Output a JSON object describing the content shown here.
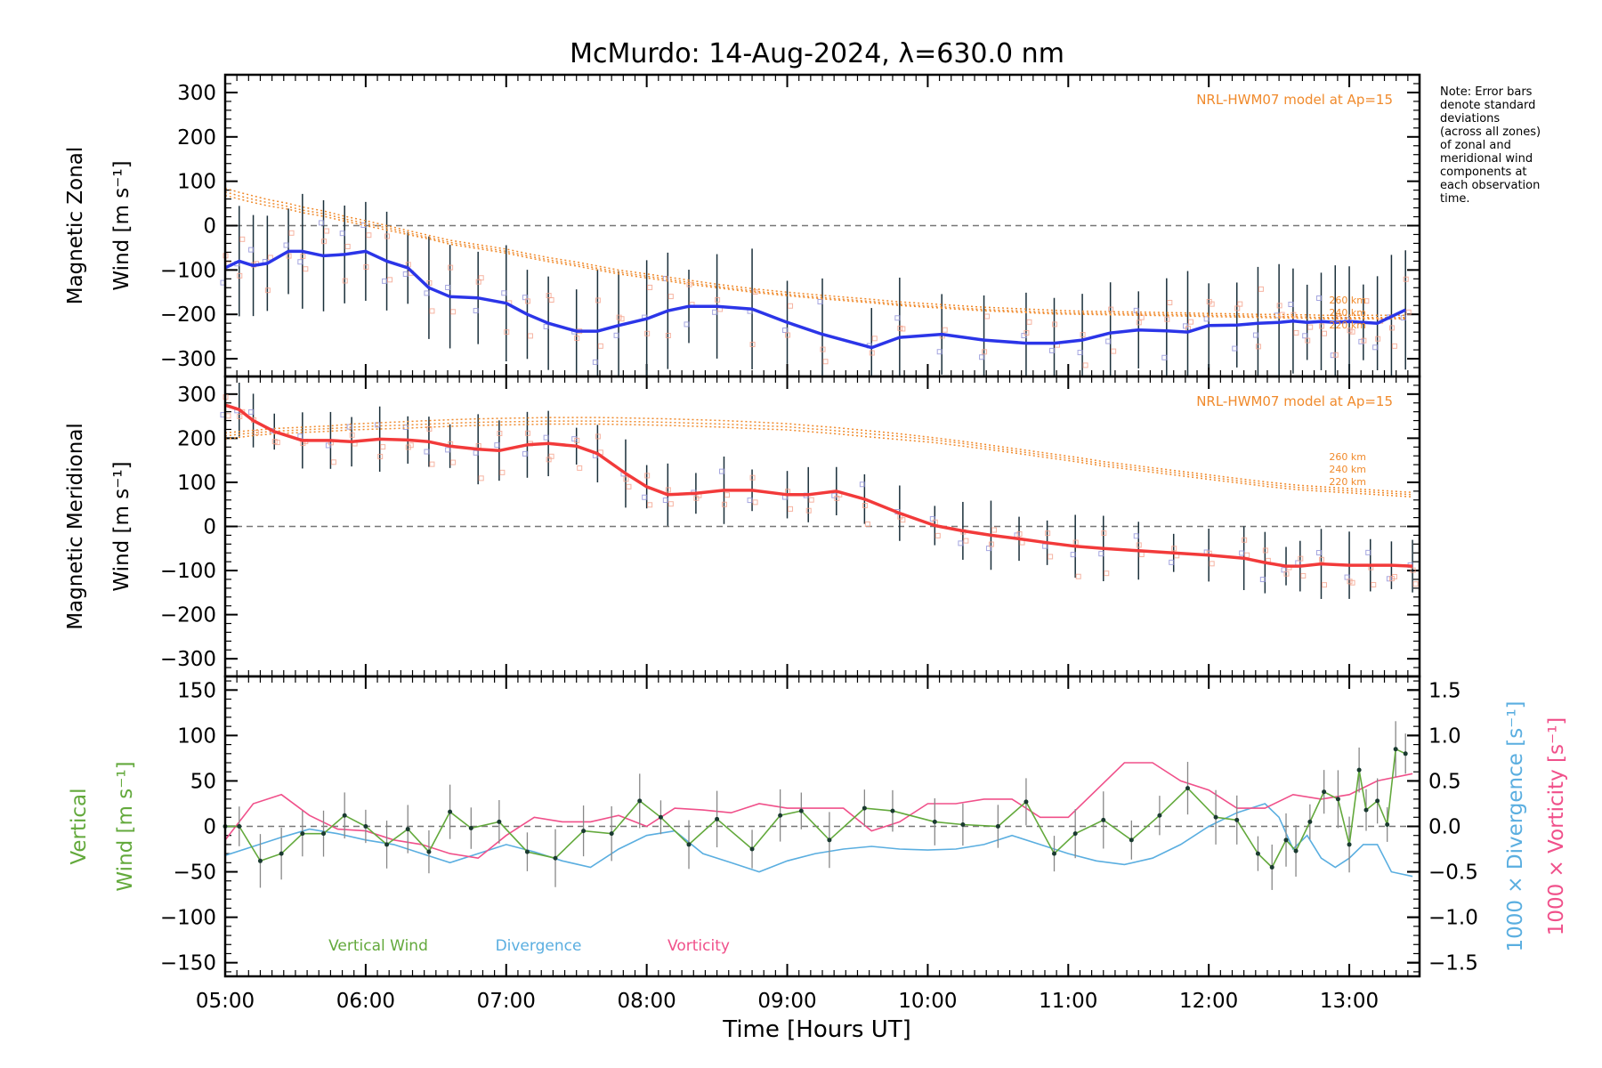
{
  "title": "McMurdo: 14-Aug-2024, λ=630.0 nm",
  "note_lines": [
    "Note: Error bars",
    "denote standard",
    "deviations",
    "(across all zones)",
    "of zonal and",
    "meridional wind",
    "components at",
    "each observation",
    "time."
  ],
  "xlabel": "Time [Hours UT]",
  "x_ticks": [
    "05:00",
    "06:00",
    "07:00",
    "08:00",
    "09:00",
    "10:00",
    "11:00",
    "12:00",
    "13:00"
  ],
  "colors": {
    "zonal": "#2b35e8",
    "meridional": "#f23a3a",
    "model": "#f08a2c",
    "vertical": "#63a93c",
    "divergence": "#5aaee0",
    "vorticity": "#f0508a",
    "scatter_blue": "#8f90d8",
    "scatter_red": "#f4a08a"
  },
  "chart_data": [
    {
      "type": "line",
      "panel": "zonal",
      "ylabel_line1": "Magnetic Zonal",
      "ylabel_line2": "Wind [m s⁻¹]",
      "model_label": "NRL-HWM07 model at Ap=15",
      "model_altitudes": [
        "260 km",
        "240 km",
        "220 km"
      ],
      "xlim": [
        5.0,
        13.5
      ],
      "ylim": [
        -340,
        340
      ],
      "y_ticks": [
        300,
        200,
        100,
        0,
        -100,
        -200,
        -300
      ],
      "grid": false,
      "x": [
        5.0,
        5.1,
        5.2,
        5.3,
        5.45,
        5.55,
        5.7,
        5.85,
        6.0,
        6.15,
        6.3,
        6.45,
        6.6,
        6.8,
        7.0,
        7.15,
        7.3,
        7.5,
        7.65,
        7.8,
        8.0,
        8.15,
        8.3,
        8.5,
        8.75,
        9.0,
        9.25,
        9.6,
        9.8,
        10.1,
        10.4,
        10.7,
        10.9,
        11.1,
        11.3,
        11.5,
        11.7,
        11.85,
        12.0,
        12.2,
        12.35,
        12.5,
        12.6,
        12.7,
        12.8,
        12.9,
        13.0,
        13.1,
        13.2,
        13.3,
        13.4
      ],
      "series": [
        {
          "values": [
            -95,
            -80,
            -90,
            -85,
            -58,
            -58,
            -68,
            -65,
            -58,
            -80,
            -95,
            -140,
            -160,
            -163,
            -175,
            -200,
            -220,
            -238,
            -238,
            -225,
            -210,
            -192,
            -182,
            -182,
            -188,
            -218,
            -245,
            -275,
            -252,
            -245,
            -258,
            -265,
            -265,
            -258,
            -242,
            -235,
            -237,
            -240,
            -225,
            -224,
            -220,
            -218,
            -215,
            -218,
            -216,
            -218,
            -216,
            -218,
            -220,
            -205,
            -190
          ]
        },
        {
          "values": [
            68,
            60,
            52,
            45,
            37,
            29,
            21,
            10,
            0,
            -10,
            -20,
            -30,
            -42,
            -52,
            -62,
            -72,
            -81,
            -91,
            -100,
            -109,
            -118,
            -125,
            -132,
            -140,
            -150,
            -158,
            -165,
            -174,
            -180,
            -186,
            -192,
            -196,
            -199,
            -200,
            -201,
            -202,
            -203,
            -204,
            -205,
            -206,
            -207,
            -208,
            -208,
            -209,
            -210,
            -210,
            -210,
            -210,
            -210,
            -210,
            -210
          ]
        },
        {
          "values": [
            76,
            67,
            59,
            52,
            43,
            35,
            27,
            15,
            5,
            -5,
            -16,
            -27,
            -38,
            -48,
            -58,
            -68,
            -77,
            -87,
            -96,
            -105,
            -114,
            -121,
            -128,
            -137,
            -147,
            -155,
            -162,
            -171,
            -177,
            -183,
            -189,
            -193,
            -196,
            -197,
            -198,
            -199,
            -200,
            -201,
            -202,
            -203,
            -204,
            -205,
            -205,
            -206,
            -207,
            -207,
            -207,
            -207,
            -207,
            -207,
            -207
          ]
        },
        {
          "values": [
            84,
            75,
            67,
            59,
            50,
            42,
            33,
            21,
            11,
            0,
            -11,
            -22,
            -33,
            -43,
            -53,
            -63,
            -72,
            -82,
            -91,
            -100,
            -109,
            -116,
            -123,
            -132,
            -142,
            -150,
            -157,
            -166,
            -172,
            -178,
            -184,
            -188,
            -191,
            -193,
            -194,
            -195,
            -196,
            -197,
            -198,
            -199,
            -200,
            -200,
            -201,
            -201,
            -202,
            -202,
            -202,
            -202,
            -202,
            -202,
            -202
          ]
        }
      ]
    },
    {
      "type": "line",
      "panel": "meridional",
      "ylabel_line1": "Magnetic Meridional",
      "ylabel_line2": "Wind [m s⁻¹]",
      "model_label": "NRL-HWM07 model at Ap=15",
      "model_altitudes": [
        "260 km",
        "240 km",
        "220 km"
      ],
      "xlim": [
        5.0,
        13.5
      ],
      "ylim": [
        -340,
        340
      ],
      "y_ticks": [
        300,
        200,
        100,
        0,
        -100,
        -200,
        -300
      ],
      "grid": false,
      "x": [
        5.0,
        5.1,
        5.2,
        5.35,
        5.55,
        5.75,
        5.9,
        6.1,
        6.3,
        6.45,
        6.6,
        6.8,
        6.95,
        7.15,
        7.3,
        7.5,
        7.65,
        7.85,
        8.0,
        8.15,
        8.35,
        8.55,
        8.75,
        9.0,
        9.15,
        9.35,
        9.55,
        9.8,
        10.05,
        10.25,
        10.45,
        10.65,
        10.85,
        11.05,
        11.25,
        11.5,
        11.75,
        12.0,
        12.25,
        12.4,
        12.55,
        12.65,
        12.8,
        13.0,
        13.15,
        13.3,
        13.45
      ],
      "series": [
        {
          "values": [
            275,
            265,
            240,
            215,
            195,
            195,
            192,
            198,
            196,
            192,
            182,
            175,
            172,
            185,
            188,
            182,
            165,
            120,
            90,
            72,
            75,
            82,
            82,
            72,
            72,
            80,
            62,
            30,
            2,
            -10,
            -20,
            -28,
            -37,
            -45,
            -50,
            -55,
            -60,
            -65,
            -72,
            -82,
            -90,
            -90,
            -85,
            -88,
            -88,
            -88,
            -90
          ]
        },
        {
          "values": [
            212,
            215,
            218,
            222,
            225,
            228,
            232,
            235,
            238,
            240,
            242,
            244,
            245,
            246,
            247,
            247,
            247,
            246,
            245,
            244,
            242,
            240,
            237,
            233,
            229,
            224,
            218,
            210,
            201,
            193,
            184,
            175,
            166,
            157,
            147,
            137,
            127,
            117,
            107,
            101,
            96,
            93,
            90,
            86,
            83,
            80,
            77
          ]
        },
        {
          "values": [
            205,
            209,
            212,
            216,
            219,
            222,
            225,
            228,
            230,
            232,
            234,
            236,
            237,
            238,
            239,
            239,
            239,
            238,
            237,
            236,
            234,
            232,
            229,
            226,
            222,
            217,
            211,
            204,
            196,
            188,
            179,
            170,
            161,
            152,
            142,
            132,
            122,
            112,
            102,
            96,
            91,
            88,
            85,
            81,
            78,
            75,
            72
          ]
        },
        {
          "values": [
            198,
            202,
            206,
            210,
            213,
            216,
            219,
            221,
            223,
            225,
            227,
            229,
            230,
            231,
            232,
            232,
            232,
            231,
            230,
            229,
            227,
            225,
            222,
            219,
            215,
            210,
            204,
            197,
            190,
            182,
            174,
            165,
            156,
            147,
            137,
            127,
            117,
            107,
            97,
            91,
            86,
            83,
            80,
            76,
            73,
            70,
            67
          ]
        }
      ]
    },
    {
      "type": "line",
      "panel": "vertical",
      "ylabel_line1": "Vertical",
      "ylabel_line2": "Wind [m s⁻¹]",
      "right_label_div": "1000 × Divergence [s⁻¹]",
      "right_label_vort": "1000 × Vorticity [s⁻¹]",
      "xlim": [
        5.0,
        13.5
      ],
      "ylim": [
        -165,
        165
      ],
      "y_ticks": [
        150,
        100,
        50,
        0,
        -50,
        -100,
        -150
      ],
      "y2lim": [
        -1.65,
        1.65
      ],
      "y2_ticks": [
        "1.5",
        "1.0",
        "0.5",
        "0.0",
        "−0.5",
        "−1.0",
        "−1.5"
      ],
      "legend": [
        "Vertical Wind",
        "Divergence",
        "Vorticity"
      ],
      "grid": false,
      "series": [
        {
          "name": "Vertical Wind",
          "x": [
            5.0,
            5.1,
            5.25,
            5.4,
            5.55,
            5.7,
            5.85,
            6.0,
            6.15,
            6.3,
            6.45,
            6.6,
            6.75,
            6.95,
            7.15,
            7.35,
            7.55,
            7.75,
            7.95,
            8.1,
            8.3,
            8.5,
            8.75,
            8.95,
            9.1,
            9.3,
            9.55,
            9.75,
            10.05,
            10.25,
            10.5,
            10.7,
            10.9,
            11.05,
            11.25,
            11.45,
            11.65,
            11.85,
            12.05,
            12.2,
            12.35,
            12.45,
            12.55,
            12.62,
            12.72,
            12.82,
            12.92,
            13.0,
            13.07,
            13.12,
            13.2,
            13.27,
            13.33,
            13.4
          ],
          "values": [
            0,
            0,
            -38,
            -30,
            -8,
            -8,
            12,
            0,
            -20,
            -3,
            -28,
            16,
            -2,
            5,
            -28,
            -35,
            -5,
            -8,
            28,
            10,
            -20,
            8,
            -25,
            12,
            17,
            -15,
            20,
            17,
            5,
            2,
            0,
            27,
            -30,
            -8,
            7,
            -15,
            12,
            42,
            10,
            7,
            -30,
            -45,
            -15,
            -27,
            5,
            38,
            30,
            -20,
            62,
            18,
            28,
            2,
            85,
            80
          ]
        },
        {
          "name": "Divergence",
          "x": [
            5.0,
            5.2,
            5.4,
            5.6,
            5.8,
            6.0,
            6.2,
            6.4,
            6.6,
            6.8,
            7.0,
            7.2,
            7.4,
            7.6,
            7.8,
            8.0,
            8.2,
            8.4,
            8.6,
            8.8,
            9.0,
            9.2,
            9.4,
            9.6,
            9.8,
            10.0,
            10.2,
            10.4,
            10.6,
            10.8,
            11.0,
            11.2,
            11.4,
            11.6,
            11.8,
            12.0,
            12.2,
            12.4,
            12.5,
            12.6,
            12.7,
            12.8,
            12.9,
            13.0,
            13.1,
            13.2,
            13.3,
            13.45
          ],
          "values": [
            -0.32,
            -0.22,
            -0.12,
            -0.03,
            -0.08,
            -0.15,
            -0.2,
            -0.3,
            -0.4,
            -0.3,
            -0.2,
            -0.28,
            -0.38,
            -0.45,
            -0.25,
            -0.1,
            -0.05,
            -0.3,
            -0.4,
            -0.5,
            -0.38,
            -0.3,
            -0.25,
            -0.22,
            -0.25,
            -0.26,
            -0.25,
            -0.2,
            -0.1,
            -0.2,
            -0.3,
            -0.38,
            -0.42,
            -0.35,
            -0.2,
            0.0,
            0.15,
            0.25,
            0.1,
            -0.25,
            -0.1,
            -0.35,
            -0.45,
            -0.35,
            -0.2,
            -0.2,
            -0.5,
            -0.55
          ]
        },
        {
          "name": "Vorticity",
          "x": [
            5.0,
            5.2,
            5.4,
            5.6,
            5.8,
            6.0,
            6.2,
            6.4,
            6.6,
            6.8,
            7.0,
            7.2,
            7.4,
            7.6,
            7.8,
            8.0,
            8.2,
            8.4,
            8.6,
            8.8,
            9.0,
            9.2,
            9.4,
            9.6,
            9.8,
            10.0,
            10.2,
            10.4,
            10.6,
            10.8,
            11.0,
            11.2,
            11.4,
            11.6,
            11.8,
            12.0,
            12.2,
            12.4,
            12.6,
            12.8,
            13.0,
            13.2,
            13.45
          ],
          "values": [
            -0.15,
            0.25,
            0.35,
            0.12,
            -0.03,
            -0.05,
            -0.15,
            -0.2,
            -0.3,
            -0.35,
            -0.1,
            0.1,
            0.05,
            0.05,
            0.12,
            0.0,
            0.2,
            0.18,
            0.15,
            0.25,
            0.2,
            0.2,
            0.2,
            -0.05,
            0.05,
            0.25,
            0.25,
            0.3,
            0.3,
            0.1,
            0.1,
            0.4,
            0.7,
            0.7,
            0.5,
            0.4,
            0.2,
            0.2,
            0.35,
            0.3,
            0.35,
            0.5,
            0.58
          ]
        }
      ]
    }
  ]
}
